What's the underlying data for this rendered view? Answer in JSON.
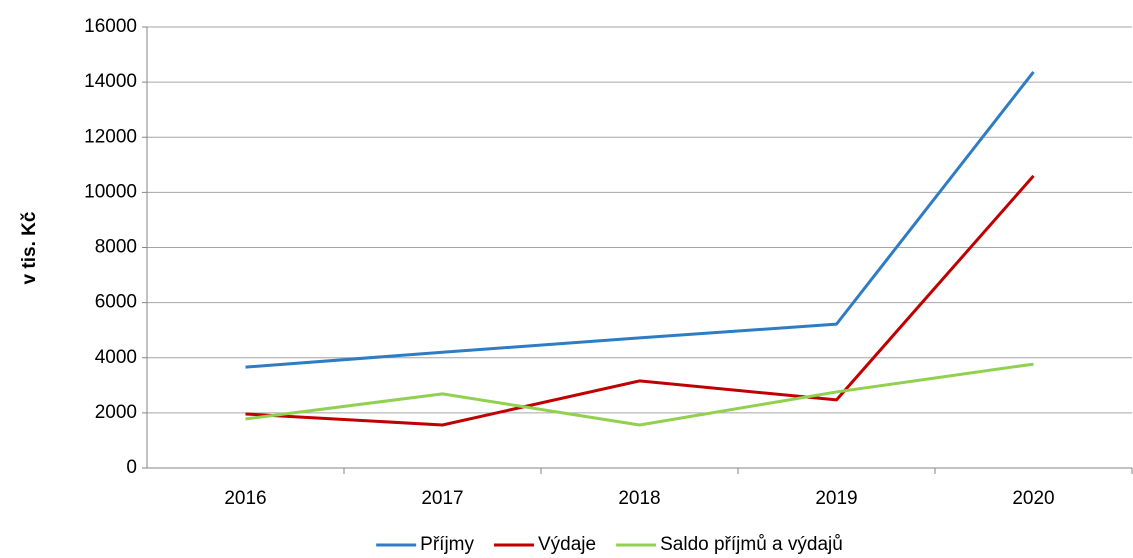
{
  "chart_data": {
    "type": "line",
    "y_label": "v tis. Kč",
    "categories": [
      "2016",
      "2017",
      "2018",
      "2019",
      "2020"
    ],
    "series": [
      {
        "name": "Příjmy",
        "color": "#2e7cc4",
        "values": [
          3660,
          4200,
          4720,
          5220,
          14370
        ]
      },
      {
        "name": "Výdaje",
        "color": "#c00000",
        "values": [
          1960,
          1560,
          3160,
          2470,
          10600
        ]
      },
      {
        "name": "Saldo příjmů a výdajů",
        "color": "#92d050",
        "values": [
          1780,
          2690,
          1560,
          2760,
          3770
        ]
      }
    ],
    "ylim": [
      0,
      16000
    ],
    "yticks": [
      0,
      2000,
      4000,
      6000,
      8000,
      10000,
      12000,
      14000,
      16000
    ],
    "grid": true,
    "legend": "bottom"
  }
}
